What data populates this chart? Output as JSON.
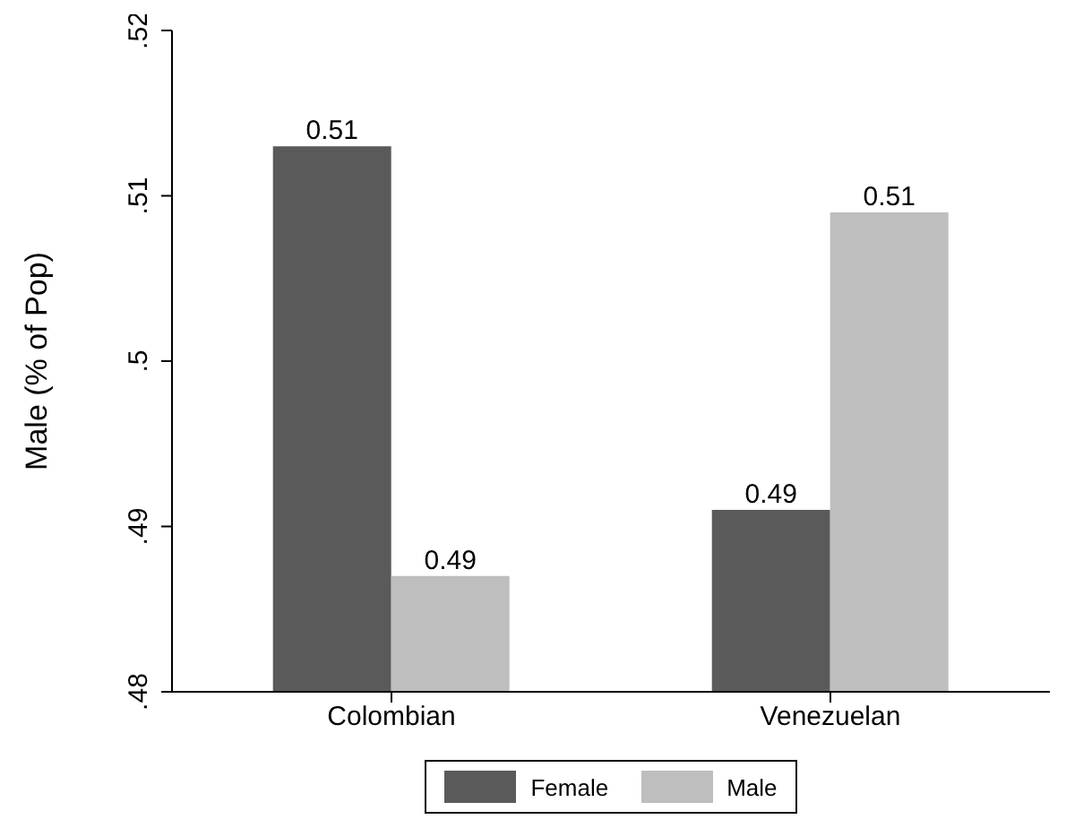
{
  "chart_data": {
    "type": "bar",
    "ylabel": "Male (% of Pop)",
    "categories": [
      "Colombian",
      "Venezuelan"
    ],
    "series": [
      {
        "name": "Female",
        "color": "#5a5a5a",
        "values": [
          0.513,
          0.491
        ],
        "value_labels": [
          "0.51",
          "0.49"
        ]
      },
      {
        "name": "Male",
        "color": "#bebebe",
        "values": [
          0.487,
          0.509
        ],
        "value_labels": [
          "0.49",
          "0.51"
        ]
      }
    ],
    "ylim": [
      0.48,
      0.52
    ],
    "yticks": [
      {
        "value": 0.48,
        "label": ".48"
      },
      {
        "value": 0.49,
        "label": ".49"
      },
      {
        "value": 0.5,
        "label": ".5"
      },
      {
        "value": 0.51,
        "label": ".51"
      },
      {
        "value": 0.52,
        "label": ".52"
      }
    ],
    "grid": false,
    "legend": "bottom"
  }
}
